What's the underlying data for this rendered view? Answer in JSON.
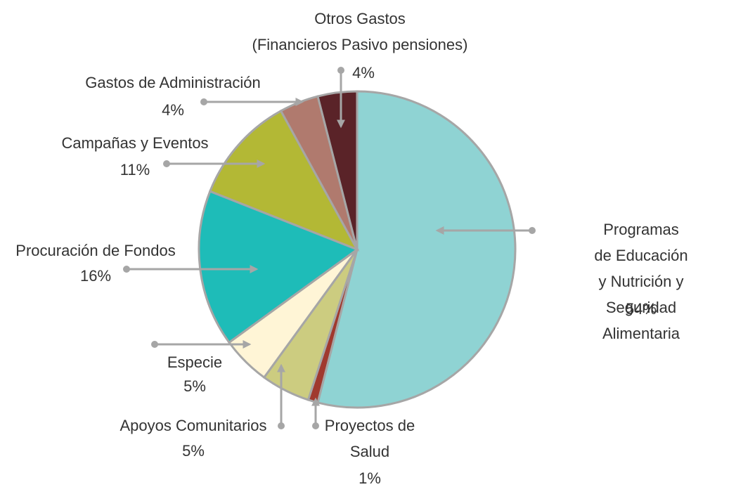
{
  "chart_data": {
    "type": "pie",
    "categories": [
      "Programas de Educación\ny Nutrición y Seguridad\nAlimentaria",
      "Proyectos de\nSalud",
      "Apoyos Comunitarios",
      "Especie",
      "Procuración de Fondos",
      "Campañas y Eventos",
      "Gastos de Administración",
      "Otros Gastos\n(Financieros Pasivo pensiones)"
    ],
    "values": [
      54,
      1,
      5,
      5,
      16,
      11,
      4,
      4
    ],
    "value_labels": [
      "54%",
      "1%",
      "5%",
      "5%",
      "16%",
      "11%",
      "4%",
      "4%"
    ],
    "colors": [
      "#8fd3d3",
      "#a0392e",
      "#cccc80",
      "#fff5d6",
      "#1ebcb8",
      "#b3b835",
      "#b07a6e",
      "#5a2328"
    ]
  }
}
